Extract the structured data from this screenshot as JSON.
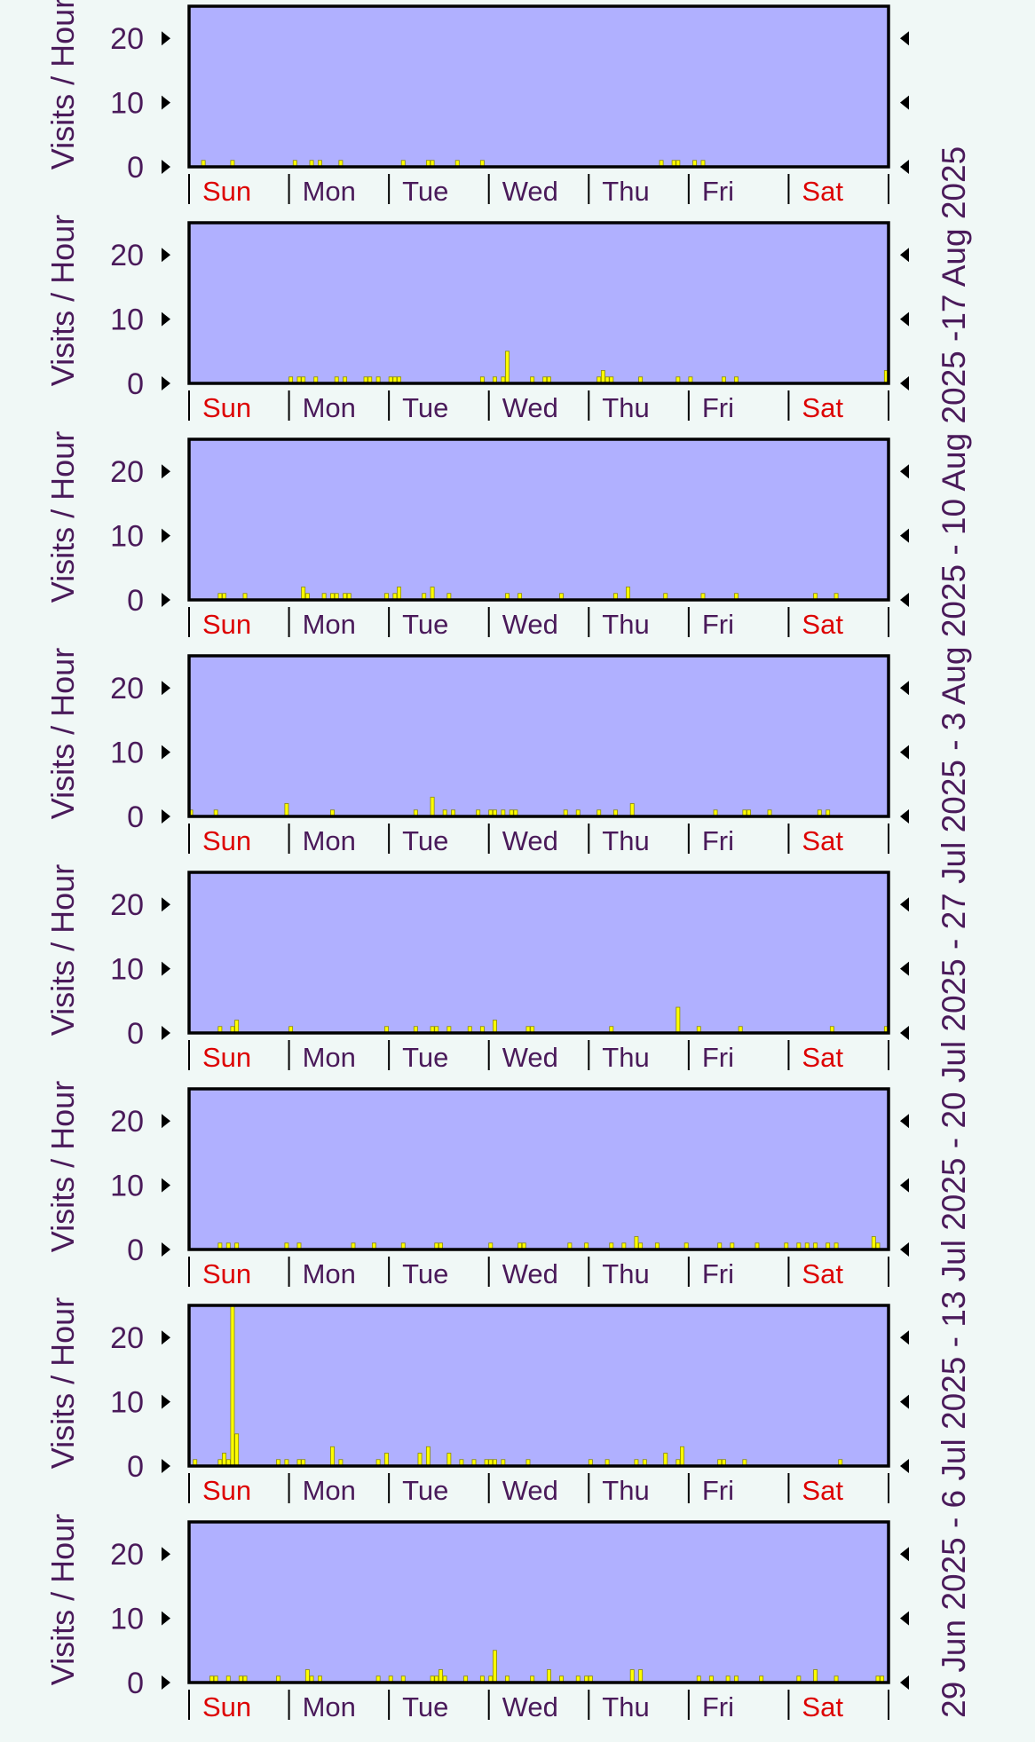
{
  "colors": {
    "background": "#f0f8f6",
    "plot_fill": "#b0b0ff",
    "bar_fill": "#ffff00",
    "bar_stroke": "#8a8a00",
    "axis": "#000000",
    "text": "#4a1a5a",
    "weekend_text": "#dd0000"
  },
  "chart_data": {
    "type": "bar",
    "ylabel": "Visits / Hour",
    "yticks": [
      "20",
      "10",
      "0"
    ],
    "ylim": [
      0,
      25
    ],
    "days": [
      "Sun",
      "Mon",
      "Tue",
      "Wed",
      "Thu",
      "Fri",
      "Sat"
    ],
    "weekend_days": [
      "Sun",
      "Sat"
    ],
    "hours_per_day": 24,
    "period_label_lines": [
      "29 Jun 2025 -  6 Jul 2025 -  13 Jul 2025 -  20 Jul 2025 -  27 Jul 2025 -  3 Aug 2025 - 10 Aug 2025 -17 Aug 2025"
    ],
    "panels": [
      {
        "bars": [
          [
            3,
            1
          ],
          [
            10,
            1
          ],
          [
            25,
            1
          ],
          [
            29,
            1
          ],
          [
            31,
            1
          ],
          [
            36,
            1
          ],
          [
            51,
            1
          ],
          [
            57,
            1
          ],
          [
            58,
            1
          ],
          [
            64,
            1
          ],
          [
            70,
            1
          ],
          [
            113,
            1
          ],
          [
            116,
            1
          ],
          [
            117,
            1
          ],
          [
            121,
            1
          ],
          [
            123,
            1
          ]
        ]
      },
      {
        "bars": [
          [
            24,
            1
          ],
          [
            26,
            1
          ],
          [
            27,
            1
          ],
          [
            30,
            1
          ],
          [
            35,
            1
          ],
          [
            37,
            1
          ],
          [
            42,
            1
          ],
          [
            43,
            1
          ],
          [
            45,
            1
          ],
          [
            48,
            1
          ],
          [
            49,
            1
          ],
          [
            50,
            1
          ],
          [
            70,
            1
          ],
          [
            73,
            1
          ],
          [
            75,
            1
          ],
          [
            76,
            5
          ],
          [
            82,
            1
          ],
          [
            85,
            1
          ],
          [
            86,
            1
          ],
          [
            98,
            1
          ],
          [
            99,
            2
          ],
          [
            100,
            1
          ],
          [
            101,
            1
          ],
          [
            108,
            1
          ],
          [
            117,
            1
          ],
          [
            120,
            1
          ],
          [
            128,
            1
          ],
          [
            131,
            1
          ],
          [
            167,
            2
          ]
        ]
      },
      {
        "bars": [
          [
            7,
            1
          ],
          [
            8,
            1
          ],
          [
            13,
            1
          ],
          [
            27,
            2
          ],
          [
            28,
            1
          ],
          [
            32,
            1
          ],
          [
            34,
            1
          ],
          [
            35,
            1
          ],
          [
            37,
            1
          ],
          [
            38,
            1
          ],
          [
            47,
            1
          ],
          [
            49,
            1
          ],
          [
            50,
            2
          ],
          [
            56,
            1
          ],
          [
            58,
            2
          ],
          [
            62,
            1
          ],
          [
            76,
            1
          ],
          [
            79,
            1
          ],
          [
            89,
            1
          ],
          [
            102,
            1
          ],
          [
            105,
            2
          ],
          [
            114,
            1
          ],
          [
            123,
            1
          ],
          [
            131,
            1
          ],
          [
            150,
            1
          ],
          [
            155,
            1
          ]
        ]
      },
      {
        "bars": [
          [
            0,
            1
          ],
          [
            6,
            1
          ],
          [
            23,
            2
          ],
          [
            34,
            1
          ],
          [
            54,
            1
          ],
          [
            58,
            3
          ],
          [
            61,
            1
          ],
          [
            63,
            1
          ],
          [
            69,
            1
          ],
          [
            72,
            1
          ],
          [
            73,
            1
          ],
          [
            75,
            1
          ],
          [
            77,
            1
          ],
          [
            78,
            1
          ],
          [
            90,
            1
          ],
          [
            93,
            1
          ],
          [
            98,
            1
          ],
          [
            102,
            1
          ],
          [
            106,
            2
          ],
          [
            126,
            1
          ],
          [
            133,
            1
          ],
          [
            134,
            1
          ],
          [
            139,
            1
          ],
          [
            151,
            1
          ],
          [
            153,
            1
          ]
        ]
      },
      {
        "bars": [
          [
            7,
            1
          ],
          [
            10,
            1
          ],
          [
            11,
            2
          ],
          [
            24,
            1
          ],
          [
            47,
            1
          ],
          [
            54,
            1
          ],
          [
            58,
            1
          ],
          [
            59,
            1
          ],
          [
            62,
            1
          ],
          [
            67,
            1
          ],
          [
            70,
            1
          ],
          [
            73,
            2
          ],
          [
            81,
            1
          ],
          [
            82,
            1
          ],
          [
            101,
            1
          ],
          [
            117,
            4
          ],
          [
            122,
            1
          ],
          [
            132,
            1
          ],
          [
            154,
            1
          ],
          [
            167,
            1
          ]
        ]
      },
      {
        "bars": [
          [
            7,
            1
          ],
          [
            9,
            1
          ],
          [
            11,
            1
          ],
          [
            23,
            1
          ],
          [
            26,
            1
          ],
          [
            39,
            1
          ],
          [
            44,
            1
          ],
          [
            51,
            1
          ],
          [
            59,
            1
          ],
          [
            60,
            1
          ],
          [
            72,
            1
          ],
          [
            79,
            1
          ],
          [
            80,
            1
          ],
          [
            91,
            1
          ],
          [
            95,
            1
          ],
          [
            101,
            1
          ],
          [
            104,
            1
          ],
          [
            107,
            2
          ],
          [
            108,
            1
          ],
          [
            112,
            1
          ],
          [
            119,
            1
          ],
          [
            127,
            1
          ],
          [
            130,
            1
          ],
          [
            136,
            1
          ],
          [
            143,
            1
          ],
          [
            146,
            1
          ],
          [
            148,
            1
          ],
          [
            150,
            1
          ],
          [
            153,
            1
          ],
          [
            155,
            1
          ],
          [
            164,
            2
          ],
          [
            165,
            1
          ]
        ]
      },
      {
        "bars": [
          [
            1,
            1
          ],
          [
            7,
            1
          ],
          [
            8,
            2
          ],
          [
            9,
            1
          ],
          [
            10,
            25
          ],
          [
            11,
            5
          ],
          [
            21,
            1
          ],
          [
            23,
            1
          ],
          [
            26,
            1
          ],
          [
            27,
            1
          ],
          [
            34,
            3
          ],
          [
            36,
            1
          ],
          [
            45,
            1
          ],
          [
            47,
            2
          ],
          [
            55,
            2
          ],
          [
            57,
            3
          ],
          [
            62,
            2
          ],
          [
            65,
            1
          ],
          [
            68,
            1
          ],
          [
            71,
            1
          ],
          [
            72,
            1
          ],
          [
            73,
            1
          ],
          [
            75,
            1
          ],
          [
            81,
            1
          ],
          [
            96,
            1
          ],
          [
            100,
            1
          ],
          [
            107,
            1
          ],
          [
            109,
            1
          ],
          [
            114,
            2
          ],
          [
            117,
            1
          ],
          [
            118,
            3
          ],
          [
            127,
            1
          ],
          [
            128,
            1
          ],
          [
            133,
            1
          ],
          [
            156,
            1
          ]
        ]
      },
      {
        "bars": [
          [
            5,
            1
          ],
          [
            6,
            1
          ],
          [
            9,
            1
          ],
          [
            12,
            1
          ],
          [
            13,
            1
          ],
          [
            21,
            1
          ],
          [
            28,
            2
          ],
          [
            29,
            1
          ],
          [
            31,
            1
          ],
          [
            45,
            1
          ],
          [
            48,
            1
          ],
          [
            51,
            1
          ],
          [
            58,
            1
          ],
          [
            59,
            1
          ],
          [
            60,
            2
          ],
          [
            61,
            1
          ],
          [
            66,
            1
          ],
          [
            70,
            1
          ],
          [
            72,
            1
          ],
          [
            73,
            5
          ],
          [
            76,
            1
          ],
          [
            82,
            1
          ],
          [
            86,
            2
          ],
          [
            89,
            1
          ],
          [
            93,
            1
          ],
          [
            95,
            1
          ],
          [
            96,
            1
          ],
          [
            106,
            2
          ],
          [
            108,
            2
          ],
          [
            122,
            1
          ],
          [
            125,
            1
          ],
          [
            129,
            1
          ],
          [
            131,
            1
          ],
          [
            137,
            1
          ],
          [
            146,
            1
          ],
          [
            150,
            2
          ],
          [
            155,
            1
          ],
          [
            165,
            1
          ],
          [
            166,
            1
          ]
        ]
      }
    ]
  }
}
